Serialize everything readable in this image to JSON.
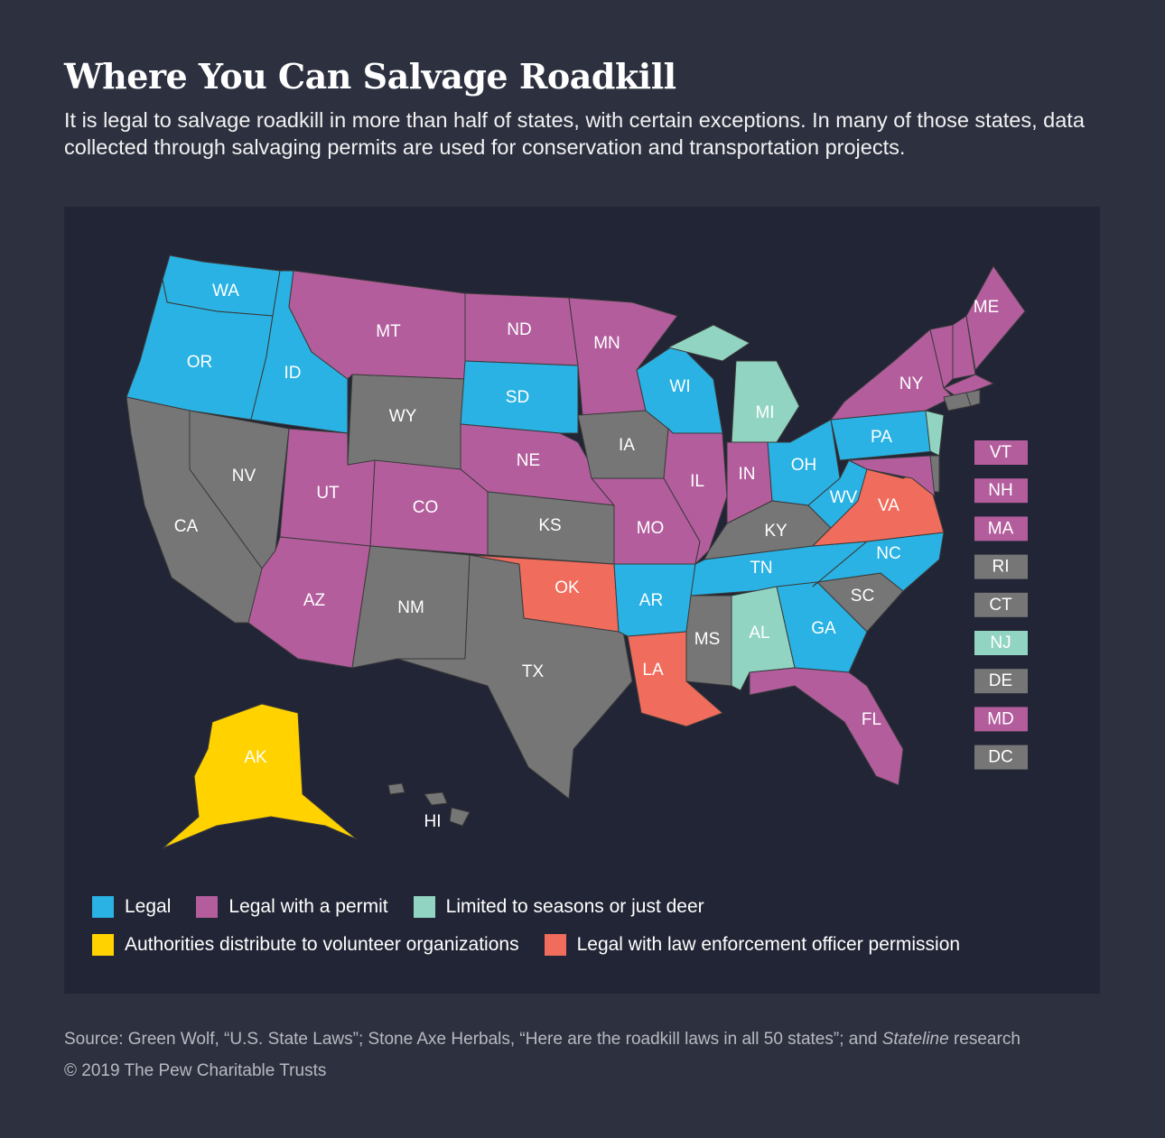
{
  "title": "Where You Can Salvage Roadkill",
  "subtitle": "It is legal to salvage roadkill in more than half of states, with certain exceptions. In many of those states, data collected through salvaging permits are used for conservation and transportation projects.",
  "colors": {
    "legal": "#29b2e3",
    "permit": "#b35d9d",
    "limited": "#92d4c2",
    "volunteer": "#ffd200",
    "officer": "#f06c5c",
    "none": "#767676"
  },
  "legend": [
    {
      "key": "legal",
      "label": "Legal"
    },
    {
      "key": "permit",
      "label": "Legal with a permit"
    },
    {
      "key": "limited",
      "label": "Limited to seasons or just deer"
    },
    {
      "key": "volunteer",
      "label": "Authorities distribute to volunteer organizations"
    },
    {
      "key": "officer",
      "label": "Legal with law enforcement officer permission"
    }
  ],
  "states": {
    "WA": "legal",
    "OR": "legal",
    "ID": "legal",
    "MT": "permit",
    "WY": "none",
    "ND": "permit",
    "SD": "legal",
    "NE": "permit",
    "CO": "permit",
    "UT": "permit",
    "NV": "none",
    "CA": "none",
    "AZ": "permit",
    "NM": "none",
    "TX": "none",
    "OK": "officer",
    "KS": "none",
    "MN": "permit",
    "IA": "none",
    "MO": "permit",
    "AR": "legal",
    "LA": "officer",
    "WI": "legal",
    "IL": "permit",
    "MI": "limited",
    "IN": "permit",
    "OH": "legal",
    "KY": "none",
    "TN": "legal",
    "MS": "none",
    "AL": "limited",
    "GA": "legal",
    "FL": "permit",
    "SC": "none",
    "NC": "legal",
    "VA": "officer",
    "WV": "legal",
    "PA": "legal",
    "NY": "permit",
    "NJ": "limited",
    "DE": "none",
    "MD": "permit",
    "VT": "permit",
    "NH": "permit",
    "ME": "permit",
    "MA": "permit",
    "CT": "none",
    "RI": "none",
    "AK": "volunteer",
    "HI": "none"
  },
  "small_states": [
    {
      "abbr": "VT",
      "key": "permit"
    },
    {
      "abbr": "NH",
      "key": "permit"
    },
    {
      "abbr": "MA",
      "key": "permit"
    },
    {
      "abbr": "RI",
      "key": "none"
    },
    {
      "abbr": "CT",
      "key": "none"
    },
    {
      "abbr": "NJ",
      "key": "limited"
    },
    {
      "abbr": "DE",
      "key": "none"
    },
    {
      "abbr": "MD",
      "key": "permit"
    },
    {
      "abbr": "DC",
      "key": "none"
    }
  ],
  "source_prefix": "Source: Green Wolf, “U.S. State Laws”; Stone Axe Herbals, “Here are the roadkill laws in all 50 states”; and ",
  "source_italic": "Stateline",
  "source_suffix": " research",
  "copyright": "© 2019 The Pew Charitable Trusts"
}
